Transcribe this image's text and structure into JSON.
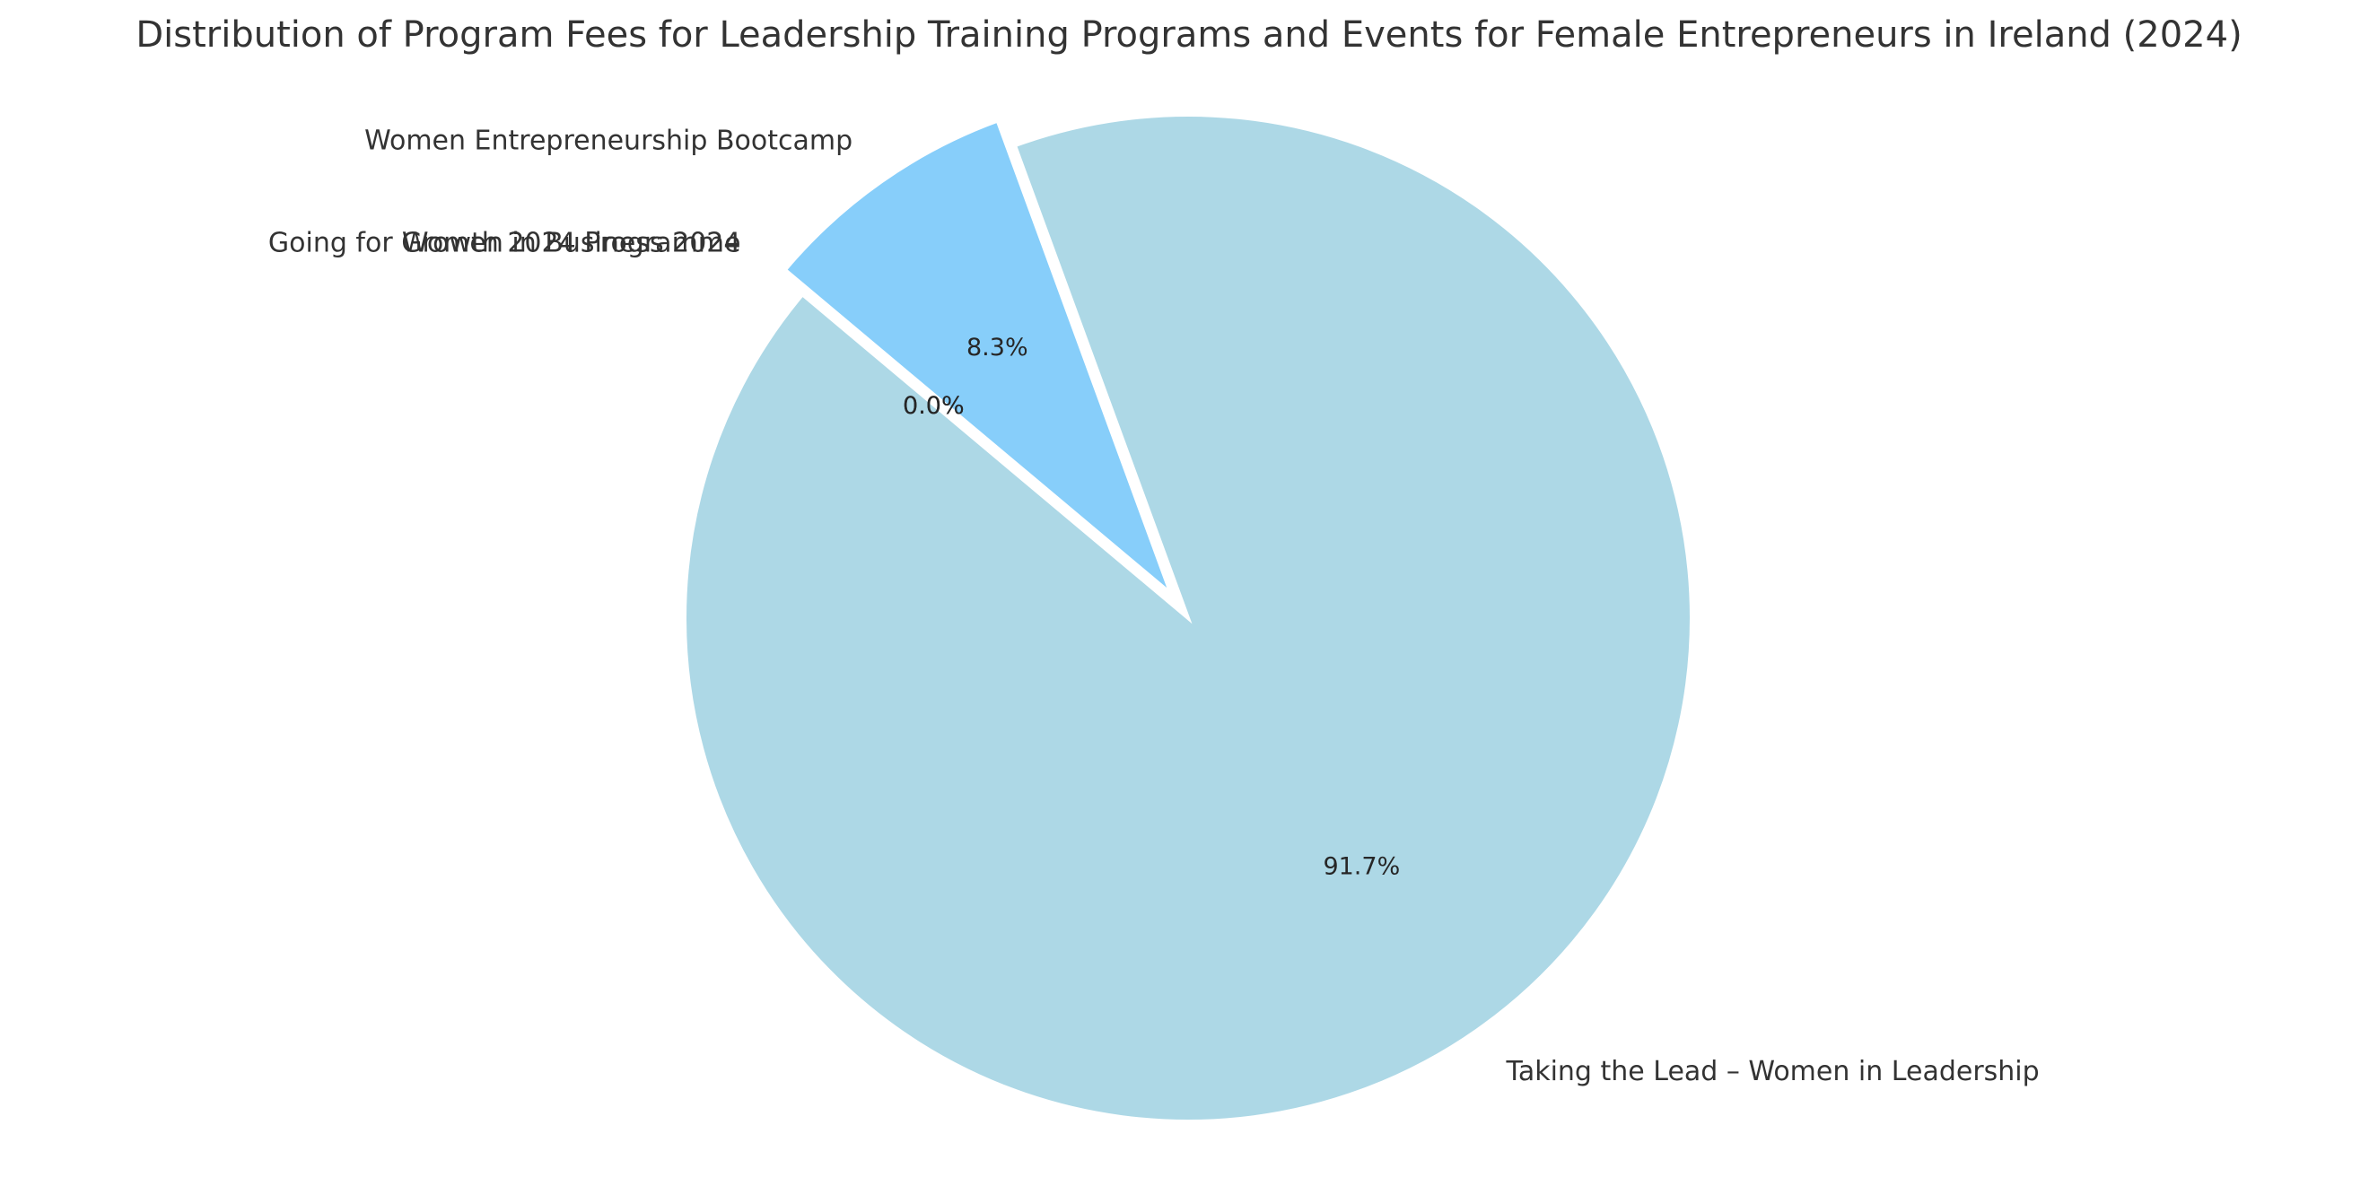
{
  "chart_data": {
    "type": "pie",
    "title": "Distribution of Program Fees for Leadership Training Programs and Events for Female Entrepreneurs in Ireland (2024)",
    "slices": [
      {
        "label": "Taking the Lead – Women in Leadership",
        "percent": 91.7,
        "percent_label": "91.7%",
        "color": "#add8e6",
        "exploded": false
      },
      {
        "label": "Women Entrepreneurship Bootcamp",
        "percent": 8.3,
        "percent_label": "8.3%",
        "color": "#87cefa",
        "exploded": true
      },
      {
        "label": "Going for Growth 2024 Programme",
        "percent": 0.0,
        "percent_label": "0.0%",
        "color": "#6495ed",
        "exploded": true
      },
      {
        "label": "Women in Business 2024",
        "percent": 0.0,
        "percent_label": "0.0%",
        "color": "#b0c4de",
        "exploded": true
      }
    ],
    "start_angle_deg": 140,
    "direction": "counterclockwise",
    "legend": "none"
  }
}
